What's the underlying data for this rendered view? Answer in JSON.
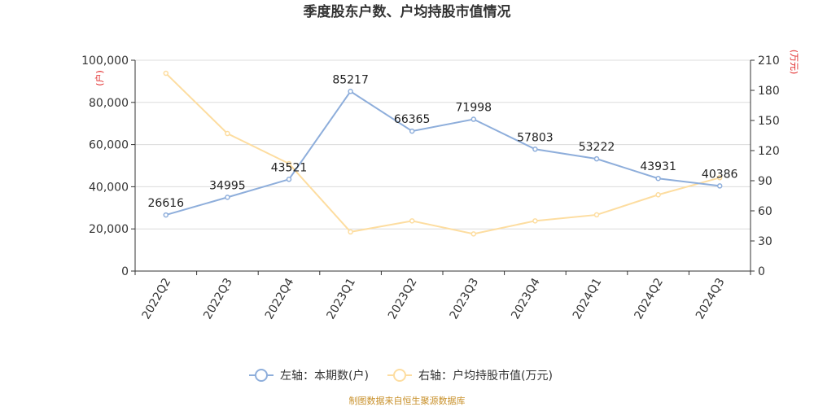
{
  "chart_data": {
    "type": "line",
    "title": "季度股东户数、户均持股市值情况",
    "categories": [
      "2022Q2",
      "2022Q3",
      "2022Q4",
      "2023Q1",
      "2023Q2",
      "2023Q3",
      "2023Q4",
      "2024Q1",
      "2024Q2",
      "2024Q3"
    ],
    "left_axis": {
      "unit_label": "(户)",
      "ylim": [
        0,
        100000
      ],
      "ticks": [
        "0",
        "20,000",
        "40,000",
        "60,000",
        "80,000",
        "100,000"
      ]
    },
    "right_axis": {
      "unit_label": "(万元)",
      "ylim": [
        0,
        210
      ],
      "ticks": [
        "0",
        "30",
        "60",
        "90",
        "120",
        "150",
        "180",
        "210"
      ]
    },
    "series": [
      {
        "name": "左轴：本期数(户)",
        "axis": "left",
        "color": "#8eaedb",
        "values": [
          26616,
          34995,
          43521,
          85217,
          66365,
          71998,
          57803,
          53222,
          43931,
          40386
        ],
        "labels": [
          "26616",
          "34995",
          "43521",
          "85217",
          "66365",
          "71998",
          "57803",
          "53222",
          "43931",
          "40386"
        ]
      },
      {
        "name": "右轴：户均持股市值(万元)",
        "axis": "right",
        "color": "#fddda0",
        "values": [
          197,
          137,
          107,
          39,
          50,
          37,
          50,
          56,
          76,
          93
        ]
      }
    ],
    "grid": true,
    "legend_position": "bottom"
  },
  "source_text": "制图数据来自恒生聚源数据库"
}
